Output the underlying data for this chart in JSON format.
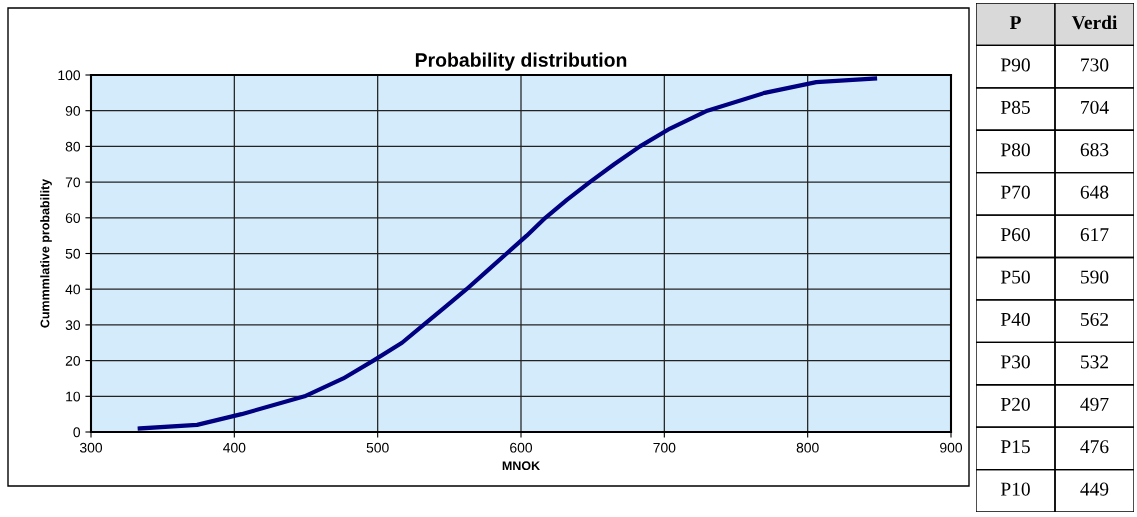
{
  "chart_data": [
    {
      "type": "line",
      "title": "Probability distribution",
      "xlabel": "MNOK",
      "ylabel": "Cummmlative probability",
      "x": [
        334,
        374,
        405,
        449,
        476,
        497,
        517,
        532,
        547,
        562,
        576,
        590,
        604,
        617,
        632,
        648,
        665,
        683,
        704,
        730,
        770,
        806,
        847
      ],
      "series": [
        {
          "color": "#000080",
          "values": [
            1,
            2,
            5,
            10,
            15,
            20,
            25,
            30,
            35,
            40,
            45,
            50,
            55,
            60,
            65,
            70,
            75,
            80,
            85,
            90,
            95,
            98,
            99
          ]
        }
      ],
      "xlim": [
        300,
        900
      ],
      "xticks": [
        300,
        400,
        500,
        600,
        700,
        800,
        900
      ],
      "ylim": [
        0,
        100
      ],
      "yticks": [
        0,
        10,
        20,
        30,
        40,
        50,
        60,
        70,
        80,
        90,
        100
      ],
      "grid": true,
      "marker": "none",
      "line_style": "solid"
    },
    {
      "type": "other",
      "annotations": [
        "P",
        "Verdi"
      ],
      "categories": [
        "P90",
        "P85",
        "P80",
        "P70",
        "P60",
        "P50",
        "P40",
        "P30",
        "P20",
        "P15",
        "P10"
      ],
      "values": [
        730,
        704,
        683,
        648,
        617,
        590,
        562,
        532,
        497,
        476,
        449
      ],
      "data_labels": true
    }
  ]
}
